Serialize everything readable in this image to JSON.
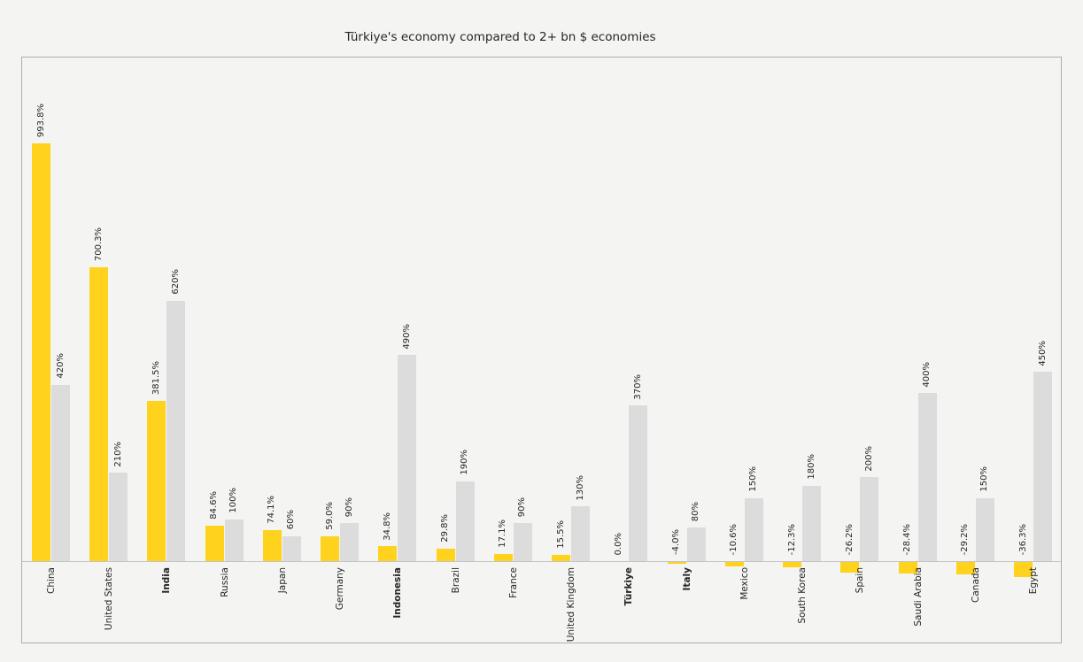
{
  "title": "Türkiye's economy compared to 2+ bn $ economies",
  "chart_data": {
    "type": "bar",
    "title": "Türkiye's economy compared to 2+ bn $ economies",
    "xlabel": "",
    "ylabel": "",
    "ylim": [
      -200,
      1200
    ],
    "grid": false,
    "legend": "none",
    "y_axis_ticks": "none",
    "categories": [
      "China",
      "United States",
      "India",
      "Russia",
      "Japan",
      "Germany",
      "Indonesia",
      "Brazil",
      "France",
      "United Kingdom",
      "Türkiye",
      "Italy",
      "Mexico",
      "South Korea",
      "Spain",
      "Saudi Arabia",
      "Canada",
      "Egypt"
    ],
    "bold_categories": [
      "India",
      "Indonesia",
      "Türkiye",
      "Italy"
    ],
    "series": [
      {
        "name": "yellow-bars",
        "color": "#FFD21E",
        "values": [
          993.8,
          700.3,
          381.5,
          84.6,
          74.1,
          59.0,
          34.8,
          29.8,
          17.1,
          15.5,
          0.0,
          -4.0,
          -10.6,
          -12.3,
          -26.2,
          -28.4,
          -29.2,
          -36.3
        ],
        "labels": [
          "993.8%",
          "700.3%",
          "381.5%",
          "84.6%",
          "74.1%",
          "59.0%",
          "34.8%",
          "29.8%",
          "17.1%",
          "15.5%",
          "0.0%",
          "-4.0%",
          "-10.6%",
          "-12.3%",
          "-26.2%",
          "-28.4%",
          "-29.2%",
          "-36.3%"
        ]
      },
      {
        "name": "gray-bars",
        "color": "#DCDCDC",
        "values": [
          420,
          210,
          620,
          100,
          60,
          90,
          490,
          190,
          90,
          130,
          370,
          80,
          150,
          180,
          200,
          400,
          150,
          450
        ],
        "labels": [
          "420%",
          "210%",
          "620%",
          "100%",
          "60%",
          "90%",
          "490%",
          "190%",
          "90%",
          "130%",
          "370%",
          "80%",
          "150%",
          "180%",
          "200%",
          "400%",
          "150%",
          "450%"
        ]
      }
    ],
    "colors": {
      "background": "#F4F4F2",
      "plot_border": "#AEAEAE",
      "zero_line": "#C4C4C4",
      "text": "#262626"
    }
  }
}
